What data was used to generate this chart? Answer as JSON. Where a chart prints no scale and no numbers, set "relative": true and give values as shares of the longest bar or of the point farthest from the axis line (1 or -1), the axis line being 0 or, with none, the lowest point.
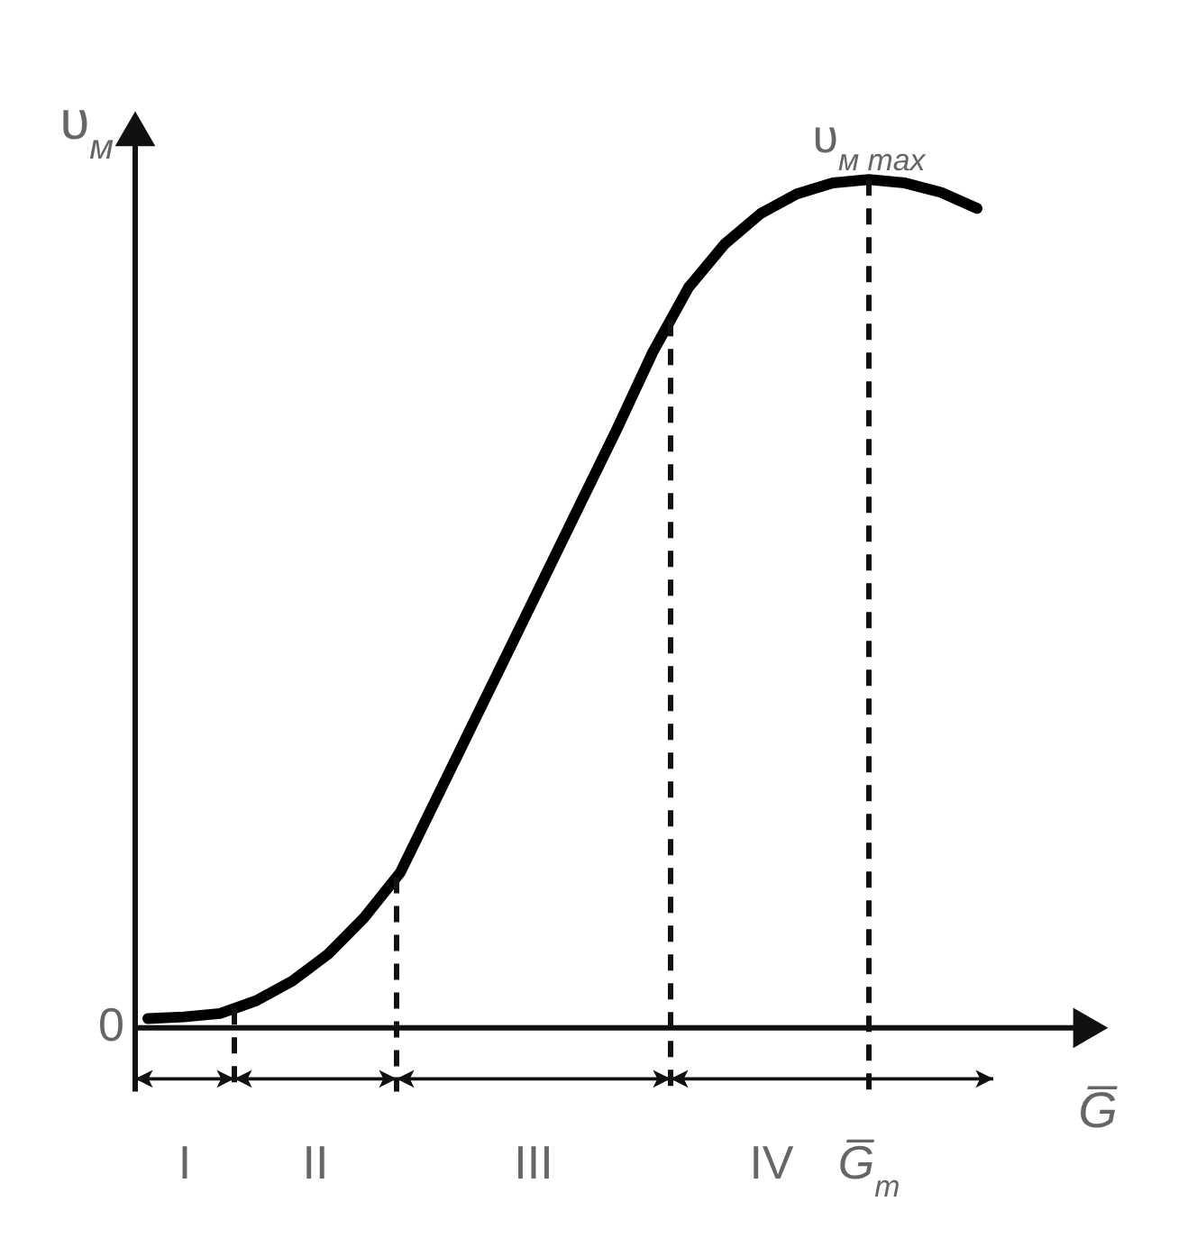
{
  "chart_data": {
    "type": "line",
    "relative": true,
    "xlabel": "G̅",
    "ylabel": "υ$_{м}$",
    "categories": [
      null,
      null,
      null,
      null,
      null,
      null,
      null,
      null,
      null,
      null,
      null,
      null,
      null,
      null,
      null,
      null,
      null,
      null,
      null,
      null,
      null,
      null,
      null,
      null
    ],
    "series": [
      {
        "color": "#000000",
        "values": [
          0.011,
          0.013,
          0.017,
          0.032,
          0.055,
          0.087,
          0.13,
          0.183,
          0.27,
          0.357,
          0.444,
          0.531,
          0.618,
          0.705,
          0.796,
          0.873,
          0.924,
          0.96,
          0.983,
          0.996,
          1,
          0.996,
          0.985,
          0.966
        ]
      }
    ],
    "annotations": [
      "υ$_{м max}$",
      "0",
      "I",
      "II",
      "III",
      "IV",
      "G̅$_{m}$"
    ]
  }
}
